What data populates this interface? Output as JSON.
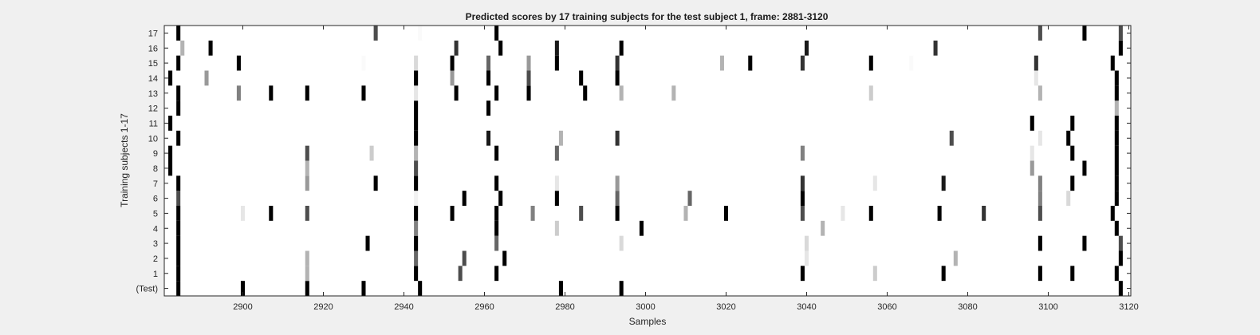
{
  "chart_data": {
    "type": "heatmap",
    "title": "Predicted scores by 17 training subjects for the test subject 1, frame: 2881-3120",
    "xlabel": "Samples",
    "ylabel": "Training subjects 1-17",
    "xlim": [
      2881,
      3120
    ],
    "x_ticks": [
      2900,
      2920,
      2940,
      2960,
      2980,
      3000,
      3020,
      3040,
      3060,
      3080,
      3100,
      3120
    ],
    "y_categories": [
      "(Test)",
      "1",
      "2",
      "3",
      "4",
      "5",
      "6",
      "7",
      "8",
      "9",
      "10",
      "11",
      "12",
      "13",
      "14",
      "15",
      "16",
      "17"
    ],
    "value_range": [
      0,
      1
    ],
    "colormap": "white-to-black",
    "rows": [
      {
        "label": "(Test)",
        "cells": [
          [
            2884,
            1
          ],
          [
            2900,
            1
          ],
          [
            2916,
            1
          ],
          [
            2930,
            1
          ],
          [
            2944,
            1
          ],
          [
            2979,
            1
          ],
          [
            2994,
            1
          ],
          [
            3118,
            1
          ]
        ]
      },
      {
        "label": "1",
        "cells": [
          [
            2884,
            1
          ],
          [
            2916,
            0.3
          ],
          [
            2943,
            1
          ],
          [
            2954,
            0.7
          ],
          [
            2963,
            1
          ],
          [
            3039,
            1
          ],
          [
            3057,
            0.2
          ],
          [
            3074,
            1
          ],
          [
            3098,
            1
          ],
          [
            3106,
            1
          ],
          [
            3117,
            1
          ]
        ]
      },
      {
        "label": "2",
        "cells": [
          [
            2884,
            1
          ],
          [
            2916,
            0.3
          ],
          [
            2943,
            0.6
          ],
          [
            2955,
            0.7
          ],
          [
            2965,
            1
          ],
          [
            3040,
            0.1
          ],
          [
            3077,
            0.3
          ],
          [
            3118,
            1
          ]
        ]
      },
      {
        "label": "3",
        "cells": [
          [
            2884,
            1
          ],
          [
            2931,
            1
          ],
          [
            2943,
            1
          ],
          [
            2963,
            0.6
          ],
          [
            2994,
            0.15
          ],
          [
            3040,
            0.15
          ],
          [
            3098,
            1
          ],
          [
            3109,
            1
          ],
          [
            3118,
            0.7
          ]
        ]
      },
      {
        "label": "4",
        "cells": [
          [
            2884,
            1
          ],
          [
            2943,
            0.5
          ],
          [
            2963,
            1
          ],
          [
            2978,
            0.2
          ],
          [
            2999,
            1
          ],
          [
            3044,
            0.3
          ],
          [
            3117,
            1
          ]
        ]
      },
      {
        "label": "5",
        "cells": [
          [
            2884,
            1
          ],
          [
            2900,
            0.1
          ],
          [
            2907,
            1
          ],
          [
            2916,
            0.7
          ],
          [
            2943,
            1
          ],
          [
            2952,
            1
          ],
          [
            2963,
            1
          ],
          [
            2972,
            0.5
          ],
          [
            2984,
            0.7
          ],
          [
            2993,
            1
          ],
          [
            3010,
            0.3
          ],
          [
            3020,
            1
          ],
          [
            3039,
            0.7
          ],
          [
            3049,
            0.1
          ],
          [
            3056,
            1
          ],
          [
            3073,
            1
          ],
          [
            3084,
            0.8
          ],
          [
            3098,
            0.7
          ],
          [
            3116,
            1
          ]
        ]
      },
      {
        "label": "6",
        "cells": [
          [
            2884,
            0.7
          ],
          [
            2943,
            0.05
          ],
          [
            2955,
            1
          ],
          [
            2964,
            1
          ],
          [
            2978,
            1
          ],
          [
            2993,
            0.6
          ],
          [
            3011,
            0.6
          ],
          [
            3039,
            1
          ],
          [
            3098,
            0.5
          ],
          [
            3105,
            0.15
          ],
          [
            3117,
            1
          ]
        ]
      },
      {
        "label": "7",
        "cells": [
          [
            2884,
            1
          ],
          [
            2916,
            0.4
          ],
          [
            2933,
            1
          ],
          [
            2943,
            1
          ],
          [
            2963,
            1
          ],
          [
            2978,
            0.1
          ],
          [
            2993,
            0.4
          ],
          [
            3039,
            0.8
          ],
          [
            3057,
            0.1
          ],
          [
            3074,
            0.9
          ],
          [
            3098,
            0.5
          ],
          [
            3106,
            1
          ],
          [
            3117,
            1
          ]
        ]
      },
      {
        "label": "8",
        "cells": [
          [
            2882,
            1
          ],
          [
            2916,
            0.3
          ],
          [
            2943,
            0.7
          ],
          [
            3096,
            0.4
          ],
          [
            3109,
            1
          ],
          [
            3117,
            1
          ]
        ]
      },
      {
        "label": "9",
        "cells": [
          [
            2882,
            1
          ],
          [
            2916,
            0.7
          ],
          [
            2932,
            0.2
          ],
          [
            2943,
            0.3
          ],
          [
            2963,
            1
          ],
          [
            2978,
            0.6
          ],
          [
            3039,
            0.5
          ],
          [
            3096,
            0.1
          ],
          [
            3106,
            1
          ],
          [
            3117,
            1
          ]
        ]
      },
      {
        "label": "10",
        "cells": [
          [
            2884,
            1
          ],
          [
            2943,
            1
          ],
          [
            2961,
            0.9
          ],
          [
            2979,
            0.3
          ],
          [
            2993,
            0.8
          ],
          [
            3076,
            0.7
          ],
          [
            3098,
            0.1
          ],
          [
            3105,
            1
          ],
          [
            3117,
            1
          ]
        ]
      },
      {
        "label": "11",
        "cells": [
          [
            2882,
            1
          ],
          [
            2943,
            1
          ],
          [
            3096,
            1
          ],
          [
            3106,
            1
          ],
          [
            3117,
            1
          ]
        ]
      },
      {
        "label": "12",
        "cells": [
          [
            2884,
            1
          ],
          [
            2943,
            1
          ],
          [
            2961,
            1
          ],
          [
            3117,
            0.3
          ]
        ]
      },
      {
        "label": "13",
        "cells": [
          [
            2884,
            1
          ],
          [
            2899,
            0.5
          ],
          [
            2907,
            1
          ],
          [
            2916,
            1
          ],
          [
            2930,
            1
          ],
          [
            2943,
            0.1
          ],
          [
            2953,
            1
          ],
          [
            2963,
            1
          ],
          [
            2971,
            1
          ],
          [
            2985,
            1
          ],
          [
            2994,
            0.3
          ],
          [
            3007,
            0.3
          ],
          [
            3056,
            0.2
          ],
          [
            3098,
            0.3
          ],
          [
            3117,
            1
          ]
        ]
      },
      {
        "label": "14",
        "cells": [
          [
            2882,
            1
          ],
          [
            2891,
            0.4
          ],
          [
            2943,
            1
          ],
          [
            2952,
            0.4
          ],
          [
            2961,
            1
          ],
          [
            2971,
            0.7
          ],
          [
            2984,
            1
          ],
          [
            2993,
            1
          ],
          [
            3097,
            0.1
          ],
          [
            3117,
            1
          ]
        ]
      },
      {
        "label": "15",
        "cells": [
          [
            2884,
            1
          ],
          [
            2899,
            1
          ],
          [
            2930,
            0.02
          ],
          [
            2943,
            0.15
          ],
          [
            2952,
            1
          ],
          [
            2961,
            0.6
          ],
          [
            2971,
            0.4
          ],
          [
            2978,
            1
          ],
          [
            2993,
            0.8
          ],
          [
            3019,
            0.3
          ],
          [
            3026,
            1
          ],
          [
            3039,
            0.8
          ],
          [
            3056,
            1
          ],
          [
            3066,
            0.02
          ],
          [
            3097,
            0.8
          ],
          [
            3116,
            1
          ]
        ]
      },
      {
        "label": "16",
        "cells": [
          [
            2885,
            0.3
          ],
          [
            2892,
            1
          ],
          [
            2953,
            0.8
          ],
          [
            2964,
            1
          ],
          [
            2978,
            0.9
          ],
          [
            2994,
            1
          ],
          [
            3040,
            0.9
          ],
          [
            3072,
            0.8
          ],
          [
            3118,
            1
          ]
        ]
      },
      {
        "label": "17",
        "cells": [
          [
            2884,
            1
          ],
          [
            2933,
            0.7
          ],
          [
            2944,
            0.02
          ],
          [
            2963,
            1
          ],
          [
            3098,
            0.7
          ],
          [
            3109,
            1
          ],
          [
            3118,
            0.7
          ]
        ]
      }
    ]
  }
}
